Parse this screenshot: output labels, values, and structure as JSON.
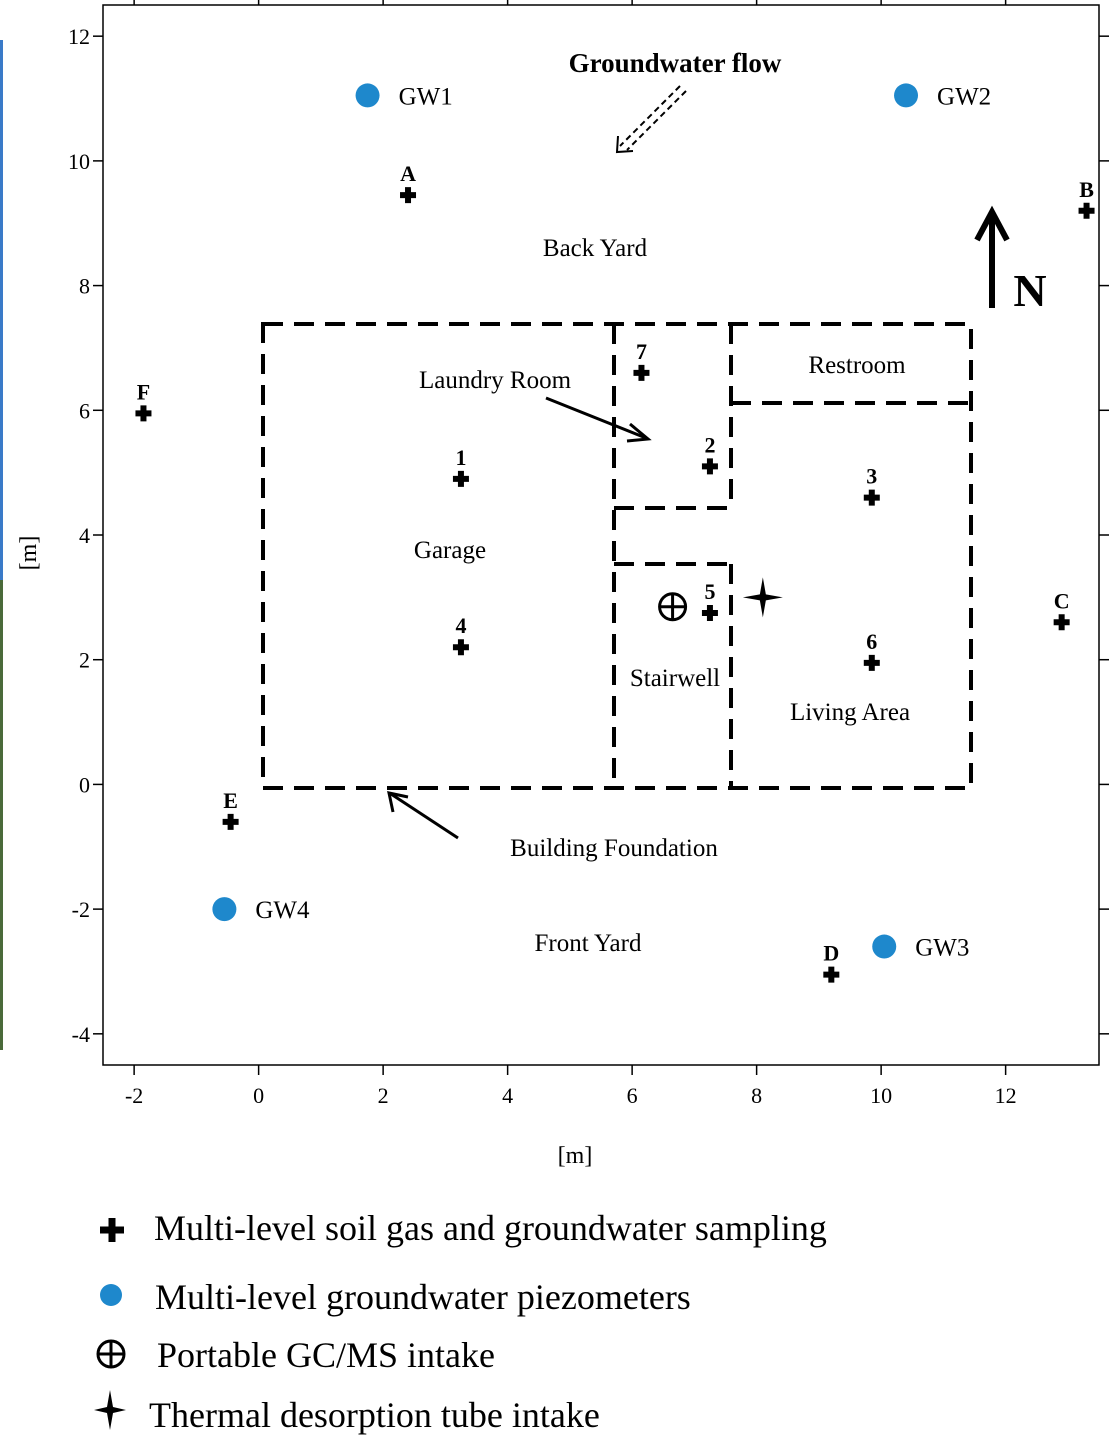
{
  "axes": {
    "x_title": "[m]",
    "y_title": "[m]",
    "x_ticks": [
      -2,
      0,
      2,
      4,
      6,
      8,
      10,
      12
    ],
    "y_ticks": [
      12,
      10,
      8,
      6,
      4,
      2,
      0,
      -2,
      -4
    ],
    "x_range": [
      -2.5,
      13.5
    ],
    "y_range": [
      -4.5,
      12.5
    ]
  },
  "annotations": {
    "groundwater_flow": "Groundwater flow",
    "north": "N",
    "building_foundation": "Building Foundation",
    "laundry_room": "Laundry Room"
  },
  "areas": {
    "back_yard": "Back Yard",
    "front_yard": "Front Yard",
    "garage": "Garage",
    "restroom": "Restroom",
    "stairwell": "Stairwell",
    "living_area": "Living Area"
  },
  "sampling_points": [
    {
      "label": "A",
      "x": 2.4,
      "y": 9.45
    },
    {
      "label": "B",
      "x": 13.3,
      "y": 9.2
    },
    {
      "label": "C",
      "x": 12.9,
      "y": 2.6
    },
    {
      "label": "D",
      "x": 9.2,
      "y": -3.05
    },
    {
      "label": "E",
      "x": -0.45,
      "y": -0.6
    },
    {
      "label": "F",
      "x": -1.85,
      "y": 5.95
    },
    {
      "label": "1",
      "x": 3.25,
      "y": 4.9
    },
    {
      "label": "2",
      "x": 7.25,
      "y": 5.1
    },
    {
      "label": "3",
      "x": 9.85,
      "y": 4.6
    },
    {
      "label": "4",
      "x": 3.25,
      "y": 2.2
    },
    {
      "label": "5",
      "x": 7.25,
      "y": 2.75
    },
    {
      "label": "6",
      "x": 9.85,
      "y": 1.95
    },
    {
      "label": "7",
      "x": 6.15,
      "y": 6.6
    }
  ],
  "piezometers": [
    {
      "label": "GW1",
      "x": 1.75,
      "y": 11.05
    },
    {
      "label": "GW2",
      "x": 10.4,
      "y": 11.05
    },
    {
      "label": "GW3",
      "x": 10.05,
      "y": -2.6
    },
    {
      "label": "GW4",
      "x": -0.55,
      "y": -2.0
    }
  ],
  "gcms_intake": {
    "x": 6.65,
    "y": 2.85
  },
  "thermal_intake": {
    "x": 8.1,
    "y": 3.0
  },
  "legend": [
    {
      "symbol": "cross-icon",
      "text": "Multi-level soil gas and groundwater sampling"
    },
    {
      "symbol": "piezometer-dot-icon",
      "text": "Multi-level groundwater piezometers"
    },
    {
      "symbol": "circled-plus-icon",
      "text": "Portable GC/MS intake"
    },
    {
      "symbol": "four-point-star-icon",
      "text": "Thermal desorption tube intake"
    }
  ],
  "colors": {
    "piezometer": "#1e88cc",
    "ink": "#000000",
    "edge_strip_top": "#3a7ac8",
    "edge_strip_bottom": "#4a6a3a"
  }
}
